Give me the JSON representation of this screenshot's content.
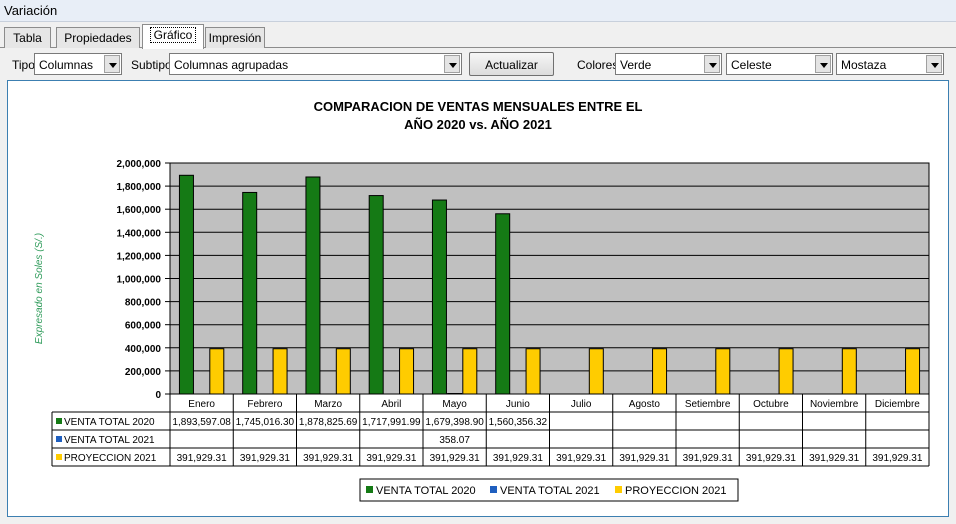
{
  "window": {
    "title": "Variación"
  },
  "tabs": [
    {
      "label": "Tabla"
    },
    {
      "label": "Propiedades"
    },
    {
      "label": "Gráfico"
    },
    {
      "label": "Impresión"
    }
  ],
  "toolbar": {
    "tipo_label": "Tipo",
    "tipo_value": "Columnas",
    "subtipo_label": "Subtipo",
    "subtipo_value": "Columnas agrupadas",
    "actualizar_label": "Actualizar",
    "colores_label": "Colores",
    "color1": "Verde",
    "color2": "Celeste",
    "color3": "Mostaza"
  },
  "chart_data": {
    "type": "bar",
    "title": [
      "COMPARACION DE VENTAS MENSUALES ENTRE EL",
      "AÑO 2020 vs. AÑO 2021"
    ],
    "ylabel": "Expresado en Soles (S/.)",
    "ylim": [
      0,
      2000000
    ],
    "yticks": [
      "0",
      "200,000",
      "400,000",
      "600,000",
      "800,000",
      "1,000,000",
      "1,200,000",
      "1,400,000",
      "1,600,000",
      "1,800,000",
      "2,000,000"
    ],
    "grid": true,
    "legend_position": "bottom",
    "categories": [
      "Enero",
      "Febrero",
      "Marzo",
      "Abril",
      "Mayo",
      "Junio",
      "Julio",
      "Agosto",
      "Setiembre",
      "Octubre",
      "Noviembre",
      "Diciembre"
    ],
    "series": [
      {
        "name": "VENTA TOTAL 2020",
        "color": "#157a15",
        "values": [
          1893597.08,
          1745016.3,
          1878825.69,
          1717991.99,
          1679398.9,
          1560356.32,
          null,
          null,
          null,
          null,
          null,
          null
        ],
        "labels": [
          "1,893,597.08",
          "1,745,016.30",
          "1,878,825.69",
          "1,717,991.99",
          "1,679,398.90",
          "1,560,356.32",
          "",
          "",
          "",
          "",
          "",
          ""
        ]
      },
      {
        "name": "VENTA TOTAL 2021",
        "color": "#1f5fbf",
        "values": [
          null,
          null,
          null,
          null,
          358.07,
          null,
          null,
          null,
          null,
          null,
          null,
          null
        ],
        "labels": [
          "",
          "",
          "",
          "",
          "358.07",
          "",
          "",
          "",
          "",
          "",
          "",
          ""
        ]
      },
      {
        "name": "PROYECCION 2021",
        "color": "#ffcc00",
        "values": [
          391929.31,
          391929.31,
          391929.31,
          391929.31,
          391929.31,
          391929.31,
          391929.31,
          391929.31,
          391929.31,
          391929.31,
          391929.31,
          391929.31
        ],
        "labels": [
          "391,929.31",
          "391,929.31",
          "391,929.31",
          "391,929.31",
          "391,929.31",
          "391,929.31",
          "391,929.31",
          "391,929.31",
          "391,929.31",
          "391,929.31",
          "391,929.31",
          "391,929.31"
        ]
      }
    ],
    "plot_background": "#c0c0c0",
    "ylabel_color": "#2e9b5a"
  }
}
